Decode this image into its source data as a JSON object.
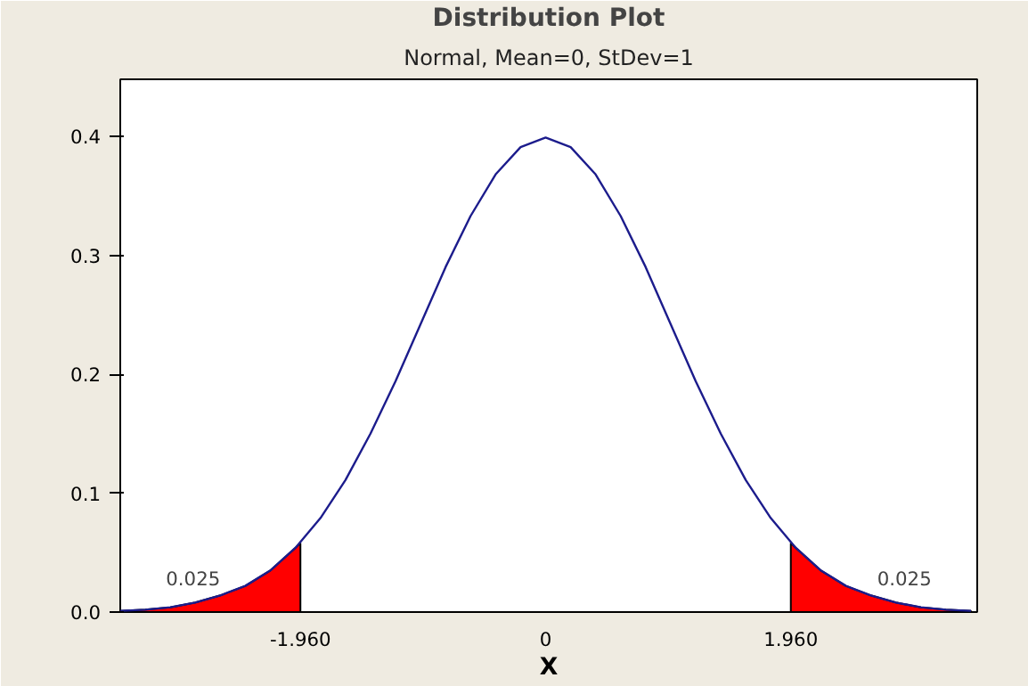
{
  "chart_data": {
    "type": "line",
    "title": "Distribution Plot",
    "subtitle": "Normal, Mean=0, StDev=1",
    "xlabel": "X",
    "xlim": [
      -3.4,
      3.45
    ],
    "ylim": [
      0,
      0.448
    ],
    "xticks": [
      {
        "value": -1.96,
        "label": "-1.960"
      },
      0,
      {
        "value": 1.96,
        "label": "1.960"
      }
    ],
    "yticks": [
      {
        "value": 0,
        "label": "0.0"
      },
      0.1,
      0.2,
      0.3,
      0.4
    ],
    "grid": false,
    "series": [
      {
        "type": "area",
        "color": "#ff0000",
        "x": [
          -3.4,
          -3.2,
          -3.0,
          -2.8,
          -2.6,
          -2.4,
          -2.2,
          -2.0,
          -1.96
        ],
        "values": [
          0.001,
          0.002,
          0.004,
          0.008,
          0.014,
          0.022,
          0.035,
          0.054,
          0.058
        ]
      },
      {
        "type": "area",
        "color": "#ff0000",
        "x": [
          1.96,
          2.0,
          2.2,
          2.4,
          2.6,
          2.8,
          3.0,
          3.2,
          3.4
        ],
        "values": [
          0.058,
          0.054,
          0.035,
          0.022,
          0.014,
          0.008,
          0.004,
          0.002,
          0.001
        ]
      },
      {
        "color": "#1c1c8c",
        "x": [
          -3.4,
          -3.2,
          -3.0,
          -2.8,
          -2.6,
          -2.4,
          -2.2,
          -2.0,
          -1.8,
          -1.6,
          -1.4,
          -1.2,
          -1.0,
          -0.8,
          -0.6,
          -0.4,
          -0.2,
          0,
          0.2,
          0.4,
          0.6,
          0.8,
          1.0,
          1.2,
          1.4,
          1.6,
          1.8,
          2.0,
          2.2,
          2.4,
          2.6,
          2.8,
          3.0,
          3.2,
          3.4
        ],
        "values": [
          0.001,
          0.002,
          0.004,
          0.008,
          0.014,
          0.022,
          0.035,
          0.054,
          0.079,
          0.111,
          0.15,
          0.194,
          0.242,
          0.29,
          0.333,
          0.368,
          0.391,
          0.399,
          0.391,
          0.368,
          0.333,
          0.29,
          0.242,
          0.194,
          0.15,
          0.111,
          0.079,
          0.054,
          0.035,
          0.022,
          0.014,
          0.008,
          0.004,
          0.002,
          0.001
        ]
      }
    ],
    "annotations": [
      "0.025",
      "0.025"
    ]
  }
}
